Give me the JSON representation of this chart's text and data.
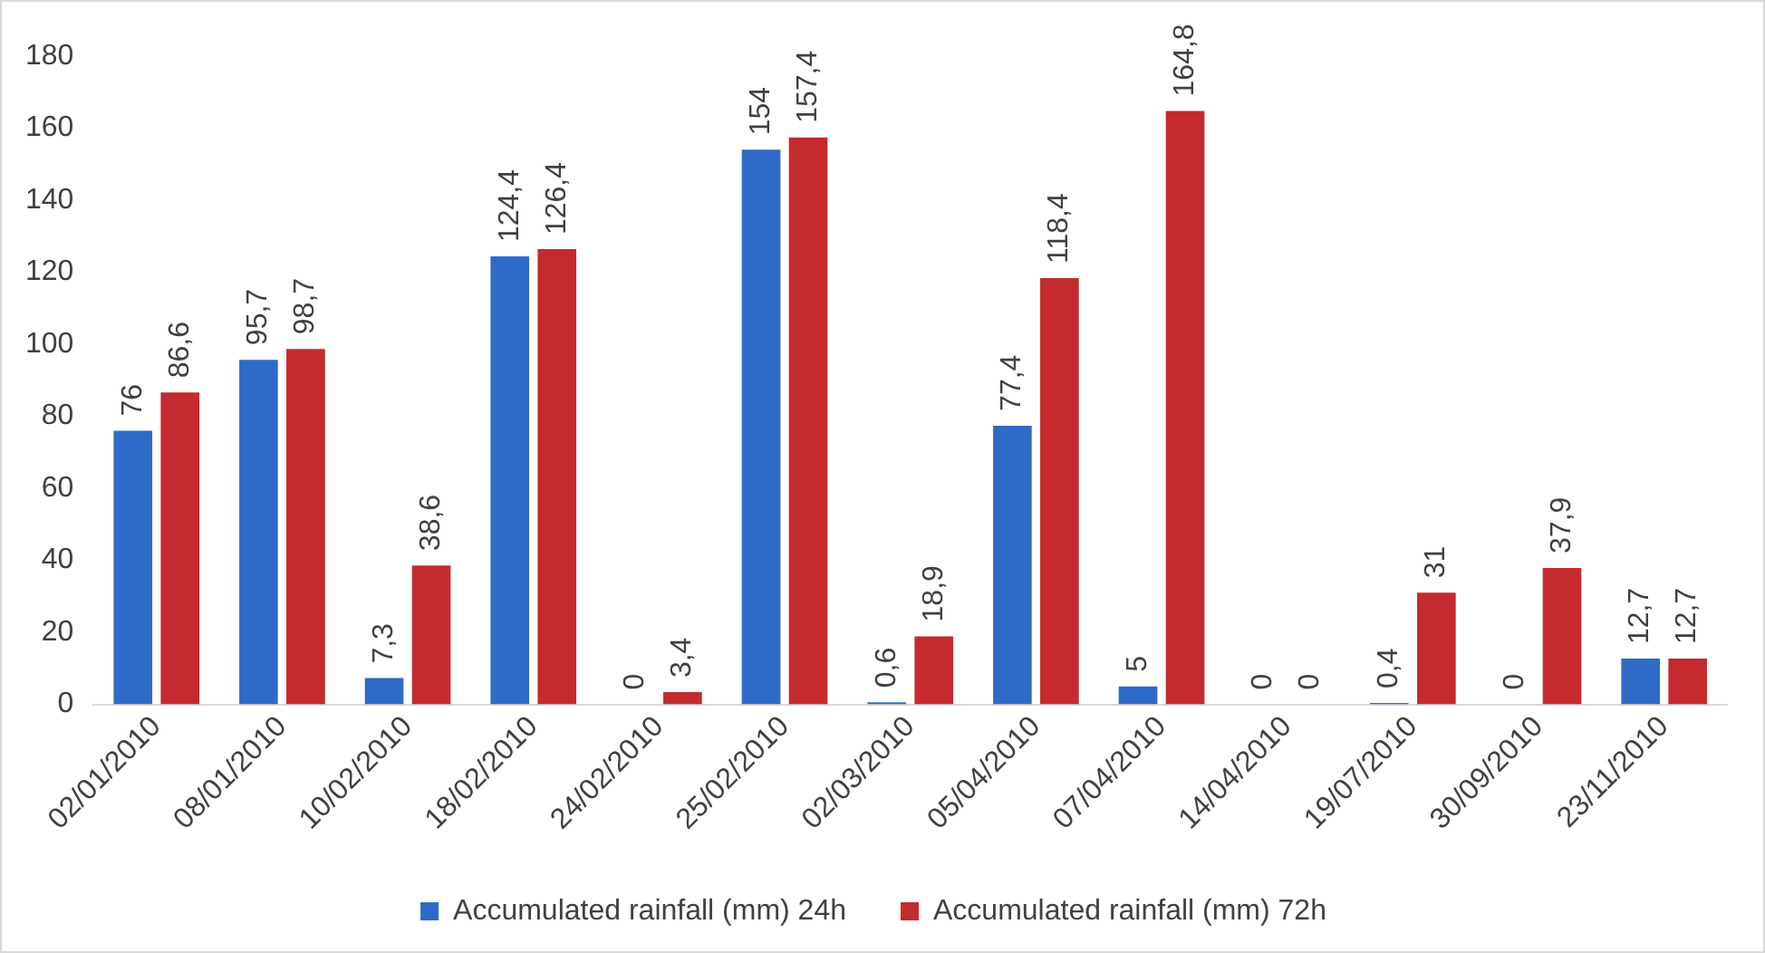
{
  "chart_data": {
    "type": "bar",
    "categories": [
      "02/01/2010",
      "08/01/2010",
      "10/02/2010",
      "18/02/2010",
      "24/02/2010",
      "25/02/2010",
      "02/03/2010",
      "05/04/2010",
      "07/04/2010",
      "14/04/2010",
      "19/07/2010",
      "30/09/2010",
      "23/11/2010"
    ],
    "series": [
      {
        "name": "Accumulated rainfall (mm) 24h",
        "color": "#2e6bc6",
        "values": [
          76,
          95.7,
          7.3,
          124.4,
          0,
          154,
          0.6,
          77.4,
          5,
          0,
          0.4,
          0,
          12.7
        ],
        "value_labels": [
          "76",
          "95,7",
          "7,3",
          "124,4",
          "0",
          "154",
          "0,6",
          "77,4",
          "5",
          "0",
          "0,4",
          "0",
          "12,7"
        ]
      },
      {
        "name": "Accumulated rainfall (mm) 72h",
        "color": "#c42a2e",
        "values": [
          86.6,
          98.7,
          38.6,
          126.4,
          3.4,
          157.4,
          18.9,
          118.4,
          164.8,
          0,
          31,
          37.9,
          12.7
        ],
        "value_labels": [
          "86,6",
          "98,7",
          "38,6",
          "126,4",
          "3,4",
          "157,4",
          "18,9",
          "118,4",
          "164,8",
          "0",
          "31",
          "37,9",
          "12,7"
        ]
      }
    ],
    "ylim": [
      0,
      180
    ],
    "yticks": [
      0,
      20,
      40,
      60,
      80,
      100,
      120,
      140,
      160,
      180
    ],
    "grid": false,
    "legend": "bottom"
  }
}
